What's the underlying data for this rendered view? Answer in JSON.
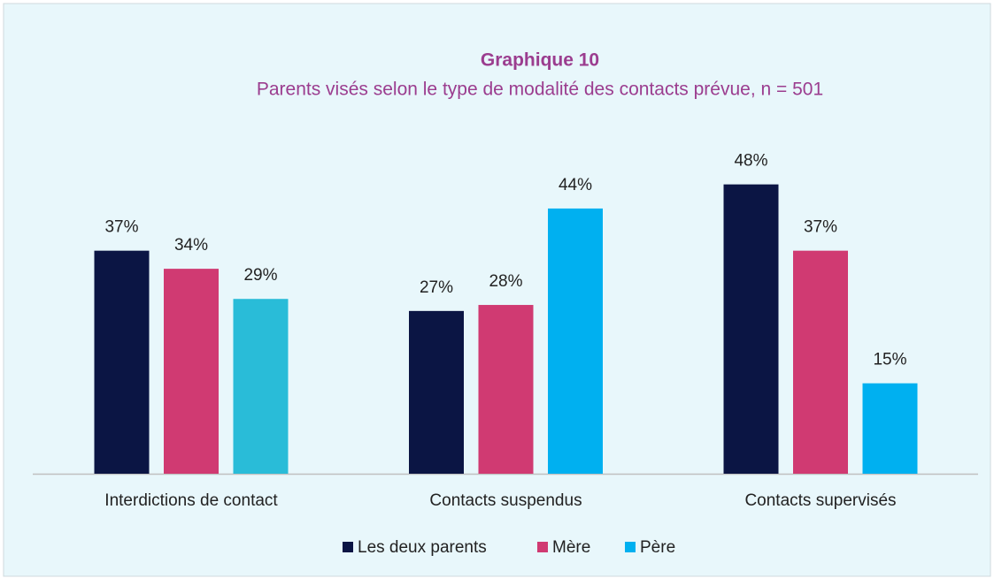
{
  "chart_data": {
    "type": "bar",
    "title": "Graphique 10",
    "subtitle": "Parents visés selon le type de modalité des contacts prévue, n = 501",
    "categories": [
      "Interdictions de contact",
      "Contacts suspendus",
      "Contacts supervisés"
    ],
    "series": [
      {
        "name": "Les deux parents",
        "color": "#0b1544",
        "values": [
          37,
          27,
          48
        ],
        "value_labels": [
          "37%",
          "27%",
          "48%"
        ]
      },
      {
        "name": "Mère",
        "color": "#d03a72",
        "values": [
          34,
          28,
          37
        ],
        "value_labels": [
          "34%",
          "28%",
          "37%"
        ]
      },
      {
        "name": "Père",
        "color": "#00b0f0",
        "colors": [
          "#29bcd8",
          "#00b0f0",
          "#00b0f0"
        ],
        "values": [
          29,
          44,
          15
        ],
        "value_labels": [
          "29%",
          "44%",
          "15%"
        ]
      }
    ],
    "legend": "bottom"
  }
}
